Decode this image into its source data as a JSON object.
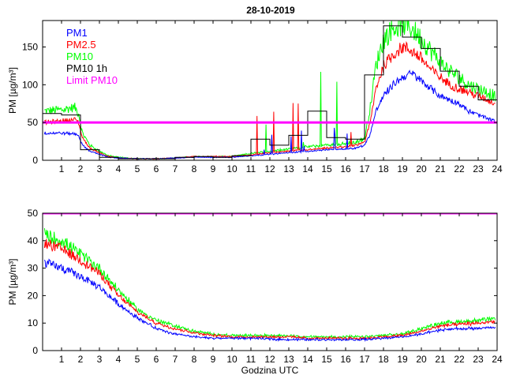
{
  "figure": {
    "title": "28-10-2019"
  },
  "colors": {
    "pm1": "#0000ff",
    "pm25": "#ff0000",
    "pm10": "#00ff00",
    "pm10_1h": "#000000",
    "limit": "#ff00ff"
  },
  "chart_data": [
    {
      "type": "line",
      "title": "28-10-2019",
      "xlabel": "",
      "ylabel": "PM [µg/m³]",
      "xlim": [
        0,
        24
      ],
      "ylim": [
        0,
        185
      ],
      "xticks": [
        "1",
        "2",
        "3",
        "4",
        "5",
        "6",
        "7",
        "8",
        "9",
        "10",
        "11",
        "12",
        "13",
        "14",
        "15",
        "16",
        "17",
        "18",
        "19",
        "20",
        "21",
        "22",
        "23",
        "24"
      ],
      "yticks": [
        "0",
        "50",
        "100",
        "150"
      ],
      "legend": [
        "PM1",
        "PM2.5",
        "PM10",
        "PM10 1h",
        "Limit PM10"
      ],
      "legend_position": "top-left",
      "limit_pm10": 50,
      "series": [
        {
          "name": "PM1",
          "key": "pm1",
          "x": [
            0.1,
            1.0,
            1.7,
            1.9,
            2.1,
            2.5,
            3.0,
            3.5,
            4,
            5,
            6,
            7,
            8,
            9,
            10,
            10.5,
            11,
            12,
            13,
            14,
            15,
            16,
            16.5,
            17,
            17.3,
            17.6,
            18,
            18.5,
            19,
            19.5,
            20,
            20.5,
            21,
            21.5,
            22,
            22.5,
            23,
            23.5,
            23.9
          ],
          "values": [
            36,
            36,
            35,
            33,
            20,
            12,
            8,
            4,
            3,
            2,
            2,
            3,
            4,
            4,
            4,
            5,
            6,
            8,
            10,
            12,
            14,
            15,
            16,
            20,
            35,
            65,
            85,
            100,
            110,
            115,
            105,
            95,
            85,
            80,
            75,
            65,
            60,
            55,
            52
          ]
        },
        {
          "name": "PM2.5",
          "key": "pm25",
          "x": [
            0.1,
            1.0,
            1.7,
            1.9,
            2.1,
            2.5,
            3.0,
            3.5,
            4,
            5,
            6,
            7,
            8,
            9,
            10,
            10.5,
            11,
            12,
            13,
            14,
            15,
            16,
            16.5,
            17,
            17.3,
            17.6,
            18,
            18.5,
            19,
            19.5,
            20,
            20.5,
            21,
            21.5,
            22,
            22.5,
            23,
            23.5,
            23.9
          ],
          "values": [
            50,
            52,
            54,
            50,
            30,
            16,
            10,
            5,
            3,
            2,
            2,
            3,
            5,
            5,
            5,
            6,
            7,
            10,
            12,
            14,
            16,
            18,
            20,
            24,
            50,
            95,
            125,
            140,
            150,
            145,
            135,
            120,
            110,
            100,
            95,
            90,
            85,
            80,
            75
          ]
        },
        {
          "name": "PM10",
          "key": "pm10",
          "x": [
            0.1,
            1.0,
            1.7,
            1.9,
            2.1,
            2.5,
            3.0,
            3.5,
            4,
            5,
            6,
            7,
            8,
            9,
            10,
            10.5,
            11,
            12,
            13,
            14,
            15,
            16,
            16.5,
            17,
            17.3,
            17.6,
            18,
            18.5,
            19,
            19.5,
            20,
            20.5,
            21,
            21.5,
            22,
            22.5,
            23,
            23.5,
            23.9
          ],
          "values": [
            65,
            67,
            70,
            62,
            36,
            20,
            12,
            6,
            4,
            2,
            2,
            3,
            5,
            5,
            5,
            7,
            9,
            12,
            15,
            18,
            20,
            22,
            24,
            28,
            70,
            125,
            160,
            175,
            180,
            175,
            160,
            145,
            130,
            118,
            110,
            100,
            95,
            90,
            85
          ]
        },
        {
          "name": "PM10 1h",
          "key": "pm10_1h",
          "x": [
            0,
            1,
            2,
            3,
            4,
            5,
            6,
            7,
            8,
            9,
            10,
            11,
            12,
            13,
            14,
            15,
            16,
            17,
            18,
            19,
            20,
            21,
            22,
            23,
            24
          ],
          "values": [
            62,
            60,
            14,
            4,
            2,
            2,
            2,
            4,
            5,
            4,
            6,
            28,
            20,
            33,
            65,
            30,
            28,
            113,
            178,
            163,
            148,
            118,
            98,
            80,
            80
          ]
        }
      ]
    },
    {
      "type": "line",
      "title": "",
      "xlabel": "Godzina UTC",
      "ylabel": "PM [µg/m³]",
      "xlim": [
        0,
        24
      ],
      "ylim": [
        0,
        50
      ],
      "xticks": [
        "1",
        "2",
        "3",
        "4",
        "5",
        "6",
        "7",
        "8",
        "9",
        "10",
        "11",
        "12",
        "13",
        "14",
        "15",
        "16",
        "17",
        "18",
        "19",
        "20",
        "21",
        "22",
        "23",
        "24"
      ],
      "yticks": [
        "0",
        "10",
        "20",
        "30",
        "40",
        "50"
      ],
      "limit_pm10": 50,
      "series": [
        {
          "name": "PM1",
          "key": "pm1",
          "x": [
            0.1,
            1,
            2,
            3,
            4,
            5,
            6,
            7,
            8,
            9,
            10,
            11,
            12,
            13,
            14,
            15,
            16,
            17,
            18,
            19,
            20,
            21,
            22,
            23,
            23.9
          ],
          "values": [
            32,
            30,
            27,
            23,
            17,
            12,
            8,
            6,
            5,
            4.5,
            4.5,
            4.5,
            4.2,
            4,
            4,
            4,
            4,
            4,
            4.5,
            5,
            6,
            7.5,
            8,
            8,
            8.5
          ]
        },
        {
          "name": "PM2.5",
          "key": "pm25",
          "x": [
            0.1,
            1,
            2,
            3,
            4,
            5,
            6,
            7,
            8,
            9,
            10,
            11,
            12,
            13,
            14,
            15,
            16,
            17,
            18,
            19,
            20,
            21,
            22,
            23,
            23.9
          ],
          "values": [
            39,
            37,
            33,
            28,
            20,
            14,
            10,
            8,
            6.5,
            5.5,
            5,
            5,
            5,
            5,
            4.5,
            4.5,
            4.5,
            4.5,
            5,
            5.5,
            7,
            9,
            9.5,
            10,
            10.5
          ]
        },
        {
          "name": "PM10",
          "key": "pm10",
          "x": [
            0.1,
            1,
            2,
            3,
            4,
            5,
            6,
            7,
            8,
            9,
            10,
            11,
            12,
            13,
            14,
            15,
            16,
            17,
            18,
            19,
            20,
            21,
            22,
            23,
            23.9
          ],
          "values": [
            42,
            40,
            35,
            30,
            22,
            15,
            11,
            9,
            7,
            6,
            5.5,
            5.5,
            5.5,
            5.5,
            5,
            5,
            5,
            5,
            5.5,
            6,
            8,
            10,
            10.5,
            11,
            11.5
          ]
        }
      ]
    }
  ]
}
